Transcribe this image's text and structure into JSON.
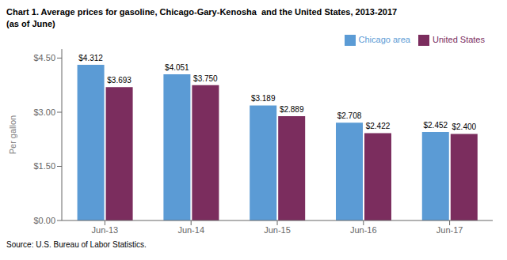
{
  "chart_data": {
    "type": "bar",
    "title": "Chart 1. Average prices for gasoline, Chicago-Gary-Kenosha  and the United States, 2013-2017",
    "subtitle": "(as of June)",
    "ylabel": "Per gallon",
    "annotations": [
      "Source: U.S. Bureau of Labor Statistics."
    ],
    "categories": [
      "Jun-13",
      "Jun-14",
      "Jun-15",
      "Jun-16",
      "Jun-17"
    ],
    "series": [
      {
        "name": "Chicago area",
        "color": "#5B9BD5",
        "values": [
          4.312,
          4.051,
          3.189,
          2.708,
          2.452
        ],
        "value_labels": [
          "$4.312",
          "$4.051",
          "$3.189",
          "$2.708",
          "$2.452"
        ]
      },
      {
        "name": "United States",
        "color": "#7B2D5E",
        "values": [
          3.693,
          3.75,
          2.889,
          2.422,
          2.4
        ],
        "value_labels": [
          "$3.693",
          "$3.750",
          "$2.889",
          "$2.422",
          "$2.400"
        ]
      }
    ],
    "ylim": [
      0,
      4.75
    ],
    "yticks": [
      {
        "value": 0.0,
        "label": "$0.00"
      },
      {
        "value": 1.5,
        "label": "$1.50"
      },
      {
        "value": 3.0,
        "label": "$3.00"
      },
      {
        "value": 4.5,
        "label": "$4.50"
      }
    ],
    "data_labels": true,
    "legend": "upper right",
    "grid": false
  }
}
